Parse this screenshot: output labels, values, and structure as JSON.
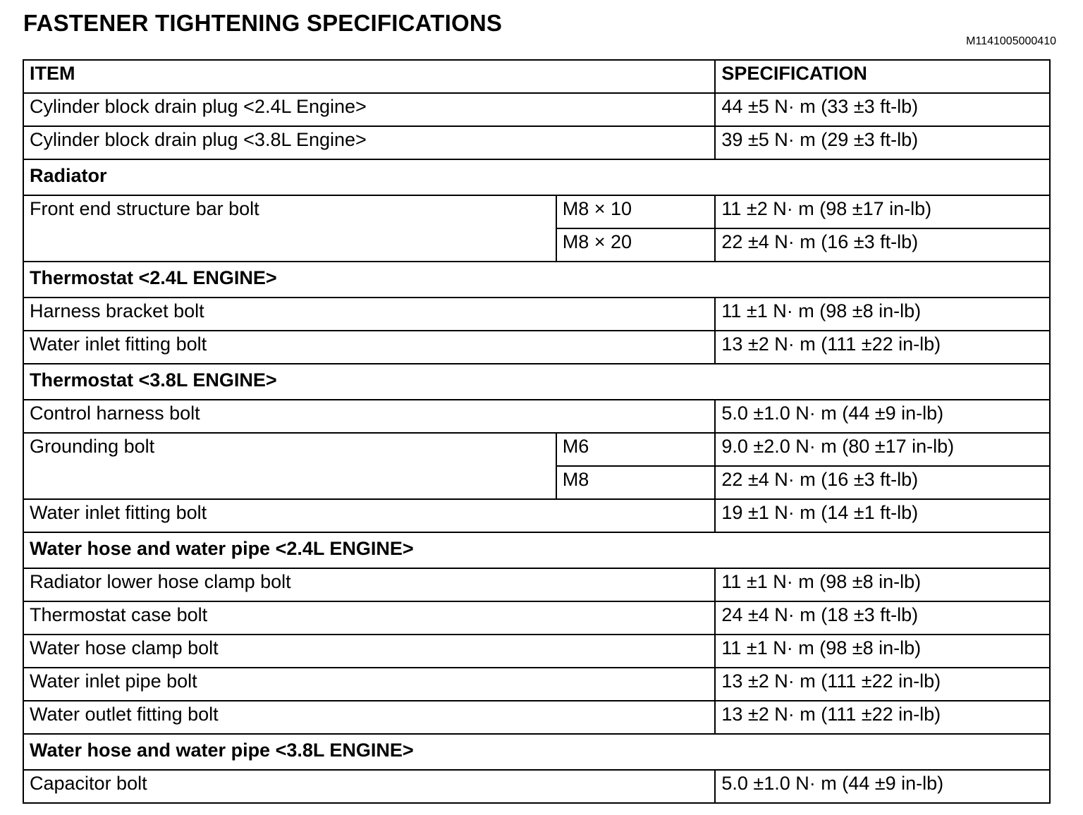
{
  "title": "FASTENER TIGHTENING SPECIFICATIONS",
  "doc_id": "M1141005000410",
  "table": {
    "headers": {
      "item": "ITEM",
      "spec": "SPECIFICATION"
    },
    "rows": [
      {
        "type": "item",
        "item": "Cylinder block drain plug <2.4L Engine>",
        "spec": "44 ±5 N· m (33 ±3 ft-lb)"
      },
      {
        "type": "item",
        "item": "Cylinder block drain plug <3.8L Engine>",
        "spec": "39 ±5 N· m (29 ±3 ft-lb)"
      },
      {
        "type": "section",
        "item": "Radiator"
      },
      {
        "type": "split",
        "item": "Front end structure bar bolt",
        "subs": [
          {
            "size": "M8 × 10",
            "spec": "11 ±2 N· m (98 ±17 in-lb)"
          },
          {
            "size": "M8 × 20",
            "spec": "22 ±4 N· m (16 ±3 ft-lb)"
          }
        ]
      },
      {
        "type": "section",
        "item": "Thermostat <2.4L ENGINE>"
      },
      {
        "type": "item",
        "item": "Harness bracket bolt",
        "spec": "11 ±1 N· m (98 ±8 in-lb)"
      },
      {
        "type": "item",
        "item": "Water inlet fitting bolt",
        "spec": "13 ±2 N· m (111 ±22 in-lb)"
      },
      {
        "type": "section",
        "item": "Thermostat <3.8L ENGINE>"
      },
      {
        "type": "item",
        "item": "Control harness bolt",
        "spec": "5.0 ±1.0 N· m (44 ±9 in-lb)"
      },
      {
        "type": "split",
        "item": "Grounding bolt",
        "subs": [
          {
            "size": "M6",
            "spec": "9.0 ±2.0 N· m (80 ±17 in-lb)"
          },
          {
            "size": "M8",
            "spec": "22 ±4 N· m (16 ±3 ft-lb)"
          }
        ]
      },
      {
        "type": "item",
        "item": "Water inlet fitting bolt",
        "spec": "19 ±1 N· m (14 ±1 ft-lb)"
      },
      {
        "type": "section",
        "item": "Water hose and water pipe <2.4L ENGINE>"
      },
      {
        "type": "item",
        "item": "Radiator lower hose clamp bolt",
        "spec": "11 ±1 N· m (98 ±8 in-lb)"
      },
      {
        "type": "item",
        "item": "Thermostat case bolt",
        "spec": "24 ±4 N· m (18 ±3 ft-lb)"
      },
      {
        "type": "item",
        "item": "Water hose clamp bolt",
        "spec": "11 ±1 N· m (98 ±8 in-lb)"
      },
      {
        "type": "item",
        "item": "Water inlet pipe bolt",
        "spec": "13 ±2 N· m (111 ±22 in-lb)"
      },
      {
        "type": "item",
        "item": "Water outlet fitting bolt",
        "spec": "13 ±2 N· m (111 ±22 in-lb)"
      },
      {
        "type": "section",
        "item": "Water hose and water pipe <3.8L ENGINE>"
      },
      {
        "type": "item",
        "item": "Capacitor bolt",
        "spec": "5.0 ±1.0 N· m (44 ±9 in-lb)"
      }
    ]
  }
}
